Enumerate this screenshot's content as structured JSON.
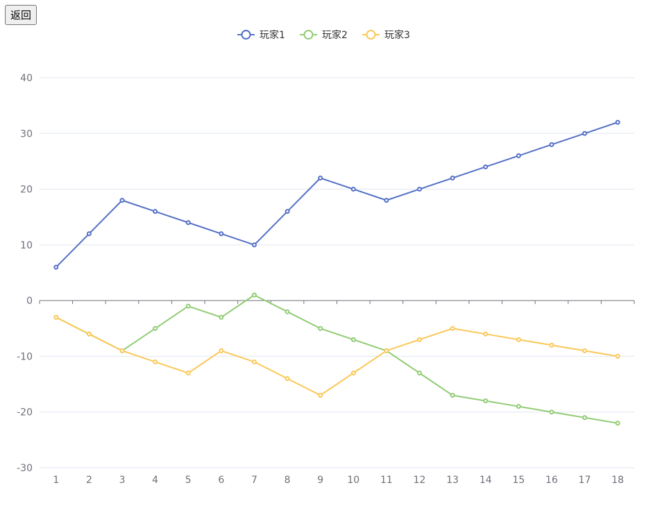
{
  "toolbar": {
    "back_label": "返回"
  },
  "chart_data": {
    "type": "line",
    "title": "",
    "xlabel": "",
    "ylabel": "",
    "categories": [
      "1",
      "2",
      "3",
      "4",
      "5",
      "6",
      "7",
      "8",
      "9",
      "10",
      "11",
      "12",
      "13",
      "14",
      "15",
      "16",
      "17",
      "18"
    ],
    "ylim": [
      -30,
      40
    ],
    "yticks": [
      -30,
      -20,
      -10,
      0,
      10,
      20,
      30,
      40
    ],
    "grid": true,
    "legend_position": "top-center",
    "series": [
      {
        "name": "玩家1",
        "color": "#5470c6",
        "values": [
          6,
          12,
          18,
          16,
          14,
          12,
          10,
          16,
          22,
          20,
          18,
          20,
          22,
          24,
          26,
          28,
          30,
          32
        ]
      },
      {
        "name": "玩家2",
        "color": "#91cc75",
        "values": [
          -3,
          -6,
          -9,
          -5,
          -1,
          -3,
          1,
          -2,
          -5,
          -7,
          -9,
          -13,
          -17,
          -18,
          -19,
          -20,
          -21,
          -22
        ]
      },
      {
        "name": "玩家3",
        "color": "#fac858",
        "values": [
          -3,
          -6,
          -9,
          -11,
          -13,
          -9,
          -11,
          -14,
          -17,
          -13,
          -9,
          -7,
          -5,
          -6,
          -7,
          -8,
          -9,
          -10
        ]
      }
    ]
  }
}
